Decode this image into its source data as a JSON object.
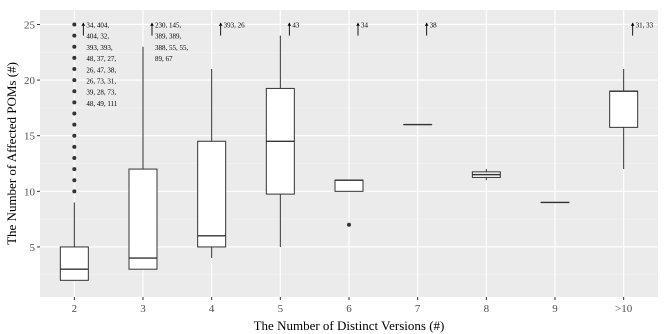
{
  "chart_data": {
    "type": "box",
    "xlabel": "The Number of Distinct Versions (#)",
    "ylabel": "The Number of Affected POMs (#)",
    "ylim": [
      0.5,
      26.3
    ],
    "yticks": [
      5,
      10,
      15,
      20,
      25
    ],
    "grid": true,
    "background": "#ebebeb",
    "categories": [
      "2",
      "3",
      "4",
      "5",
      "6",
      "7",
      "8",
      "9",
      ">10"
    ],
    "boxes": [
      {
        "category": "2",
        "min": 2,
        "q1": 2,
        "median": 3,
        "q3": 5,
        "max": 9,
        "outliers": [
          10,
          11,
          12,
          13,
          14,
          15,
          16,
          17,
          18,
          19,
          20,
          21,
          22,
          23,
          24,
          25
        ]
      },
      {
        "category": "3",
        "min": 3,
        "q1": 3,
        "median": 4,
        "q3": 12,
        "max": 23,
        "outliers": []
      },
      {
        "category": "4",
        "min": 4,
        "q1": 5,
        "median": 6,
        "q3": 14.5,
        "max": 21,
        "outliers": []
      },
      {
        "category": "5",
        "min": 5,
        "q1": 9.75,
        "median": 14.5,
        "q3": 19.25,
        "max": 24,
        "outliers": []
      },
      {
        "category": "6",
        "min": 10,
        "q1": 10,
        "median": 11,
        "q3": 11,
        "max": 11,
        "outliers": [
          7
        ]
      },
      {
        "category": "7",
        "min": 16,
        "q1": 16,
        "median": 16,
        "q3": 16,
        "max": 16,
        "outliers": []
      },
      {
        "category": "8",
        "min": 11,
        "q1": 11.25,
        "median": 11.5,
        "q3": 11.75,
        "max": 12,
        "outliers": []
      },
      {
        "category": "9",
        "min": 9,
        "q1": 9,
        "median": 9,
        "q3": 9,
        "max": 9,
        "outliers": []
      },
      {
        "category": ">10",
        "min": 12,
        "q1": 15.75,
        "median": 19,
        "q3": 19,
        "max": 21,
        "outliers": []
      }
    ],
    "annotations": [
      {
        "category": "2",
        "lines": [
          "34, 404,",
          "404, 32,",
          "393, 393,",
          "48, 37, 27,",
          "26, 47, 38,",
          "26, 73, 31,",
          "39, 28, 73,",
          "48, 49, 111"
        ]
      },
      {
        "category": "3",
        "lines": [
          "230, 145,",
          "389, 389,",
          " 388, 55, 55,",
          "89, 67"
        ]
      },
      {
        "category": "4",
        "lines": [
          "393, 26"
        ]
      },
      {
        "category": "5",
        "lines": [
          "43"
        ]
      },
      {
        "category": "6",
        "lines": [
          "34"
        ]
      },
      {
        "category": "7",
        "lines": [
          "38"
        ]
      },
      {
        "category": ">10",
        "lines": [
          "31, 33"
        ]
      }
    ]
  }
}
